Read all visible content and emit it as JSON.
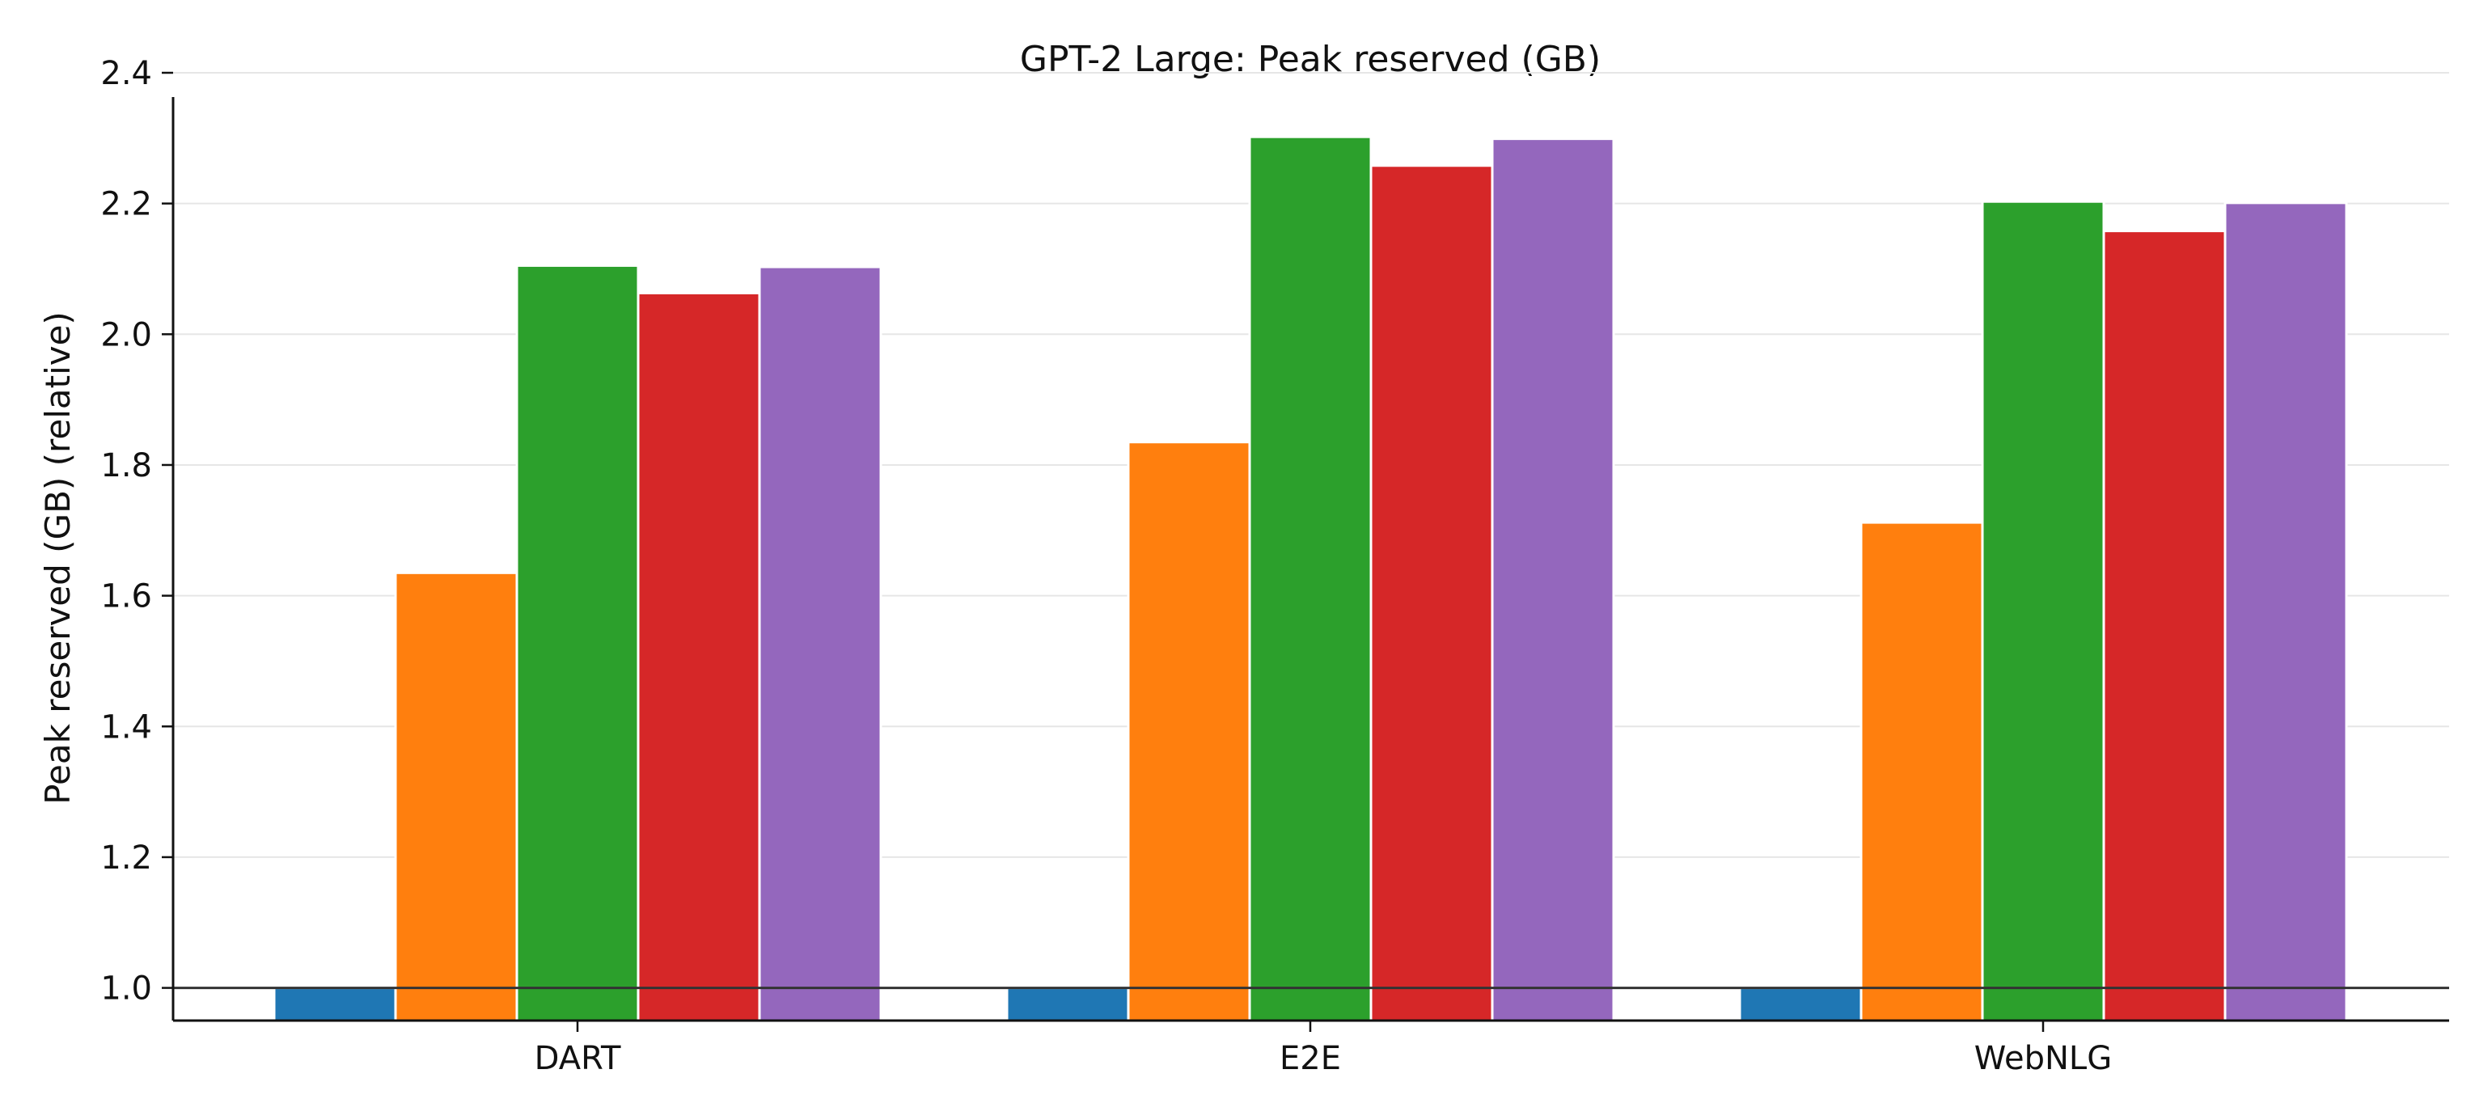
{
  "chart_data": {
    "type": "bar",
    "title": "GPT-2 Large: Peak reserved (GB)",
    "xlabel": "",
    "ylabel": "Peak reserved (GB) (relative)",
    "categories": [
      "DART",
      "E2E",
      "WebNLG"
    ],
    "ylim": [
      0.95,
      2.4
    ],
    "yticks": [
      "1.0",
      "1.2",
      "1.4",
      "1.6",
      "1.8",
      "2.0",
      "2.2",
      "2.4"
    ],
    "baseline": 1.0,
    "grid": "horizontal",
    "legend": "none",
    "series": [
      {
        "color": "#1f77b4",
        "values": [
          1.0,
          1.0,
          1.0
        ]
      },
      {
        "color": "#ff7f0e",
        "values": [
          1.635,
          1.835,
          1.712
        ]
      },
      {
        "color": "#2ca02c",
        "values": [
          2.105,
          2.302,
          2.203
        ]
      },
      {
        "color": "#d62728",
        "values": [
          2.063,
          2.258,
          2.158
        ]
      },
      {
        "color": "#9467bd",
        "values": [
          2.103,
          2.299,
          2.201
        ]
      }
    ]
  }
}
